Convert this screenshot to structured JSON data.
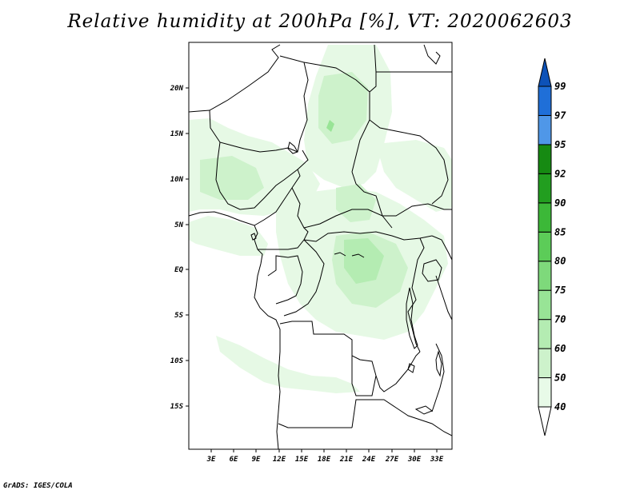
{
  "title": "Relative humidity at 200hPa [%], VT: 2020062603",
  "credit": "GrADS: IGES/COLA",
  "map": {
    "lat_labels": [
      "20N",
      "15N",
      "10N",
      "5N",
      "EQ",
      "5S",
      "10S",
      "15S"
    ],
    "lon_labels": [
      "3E",
      "6E",
      "9E",
      "12E",
      "15E",
      "18E",
      "21E",
      "24E",
      "27E",
      "30E",
      "33E"
    ]
  },
  "colorbar": {
    "levels": [
      "40",
      "50",
      "60",
      "70",
      "75",
      "80",
      "85",
      "90",
      "92",
      "95",
      "97",
      "99"
    ],
    "colors": [
      "#ffffff",
      "#e8fae8",
      "#cdf2cb",
      "#b4ecb2",
      "#98e496",
      "#7ed97b",
      "#5ccc58",
      "#3cb838",
      "#229e1f",
      "#168a12",
      "#4f97e8",
      "#1f6fd8",
      "#0d52b8"
    ]
  }
}
